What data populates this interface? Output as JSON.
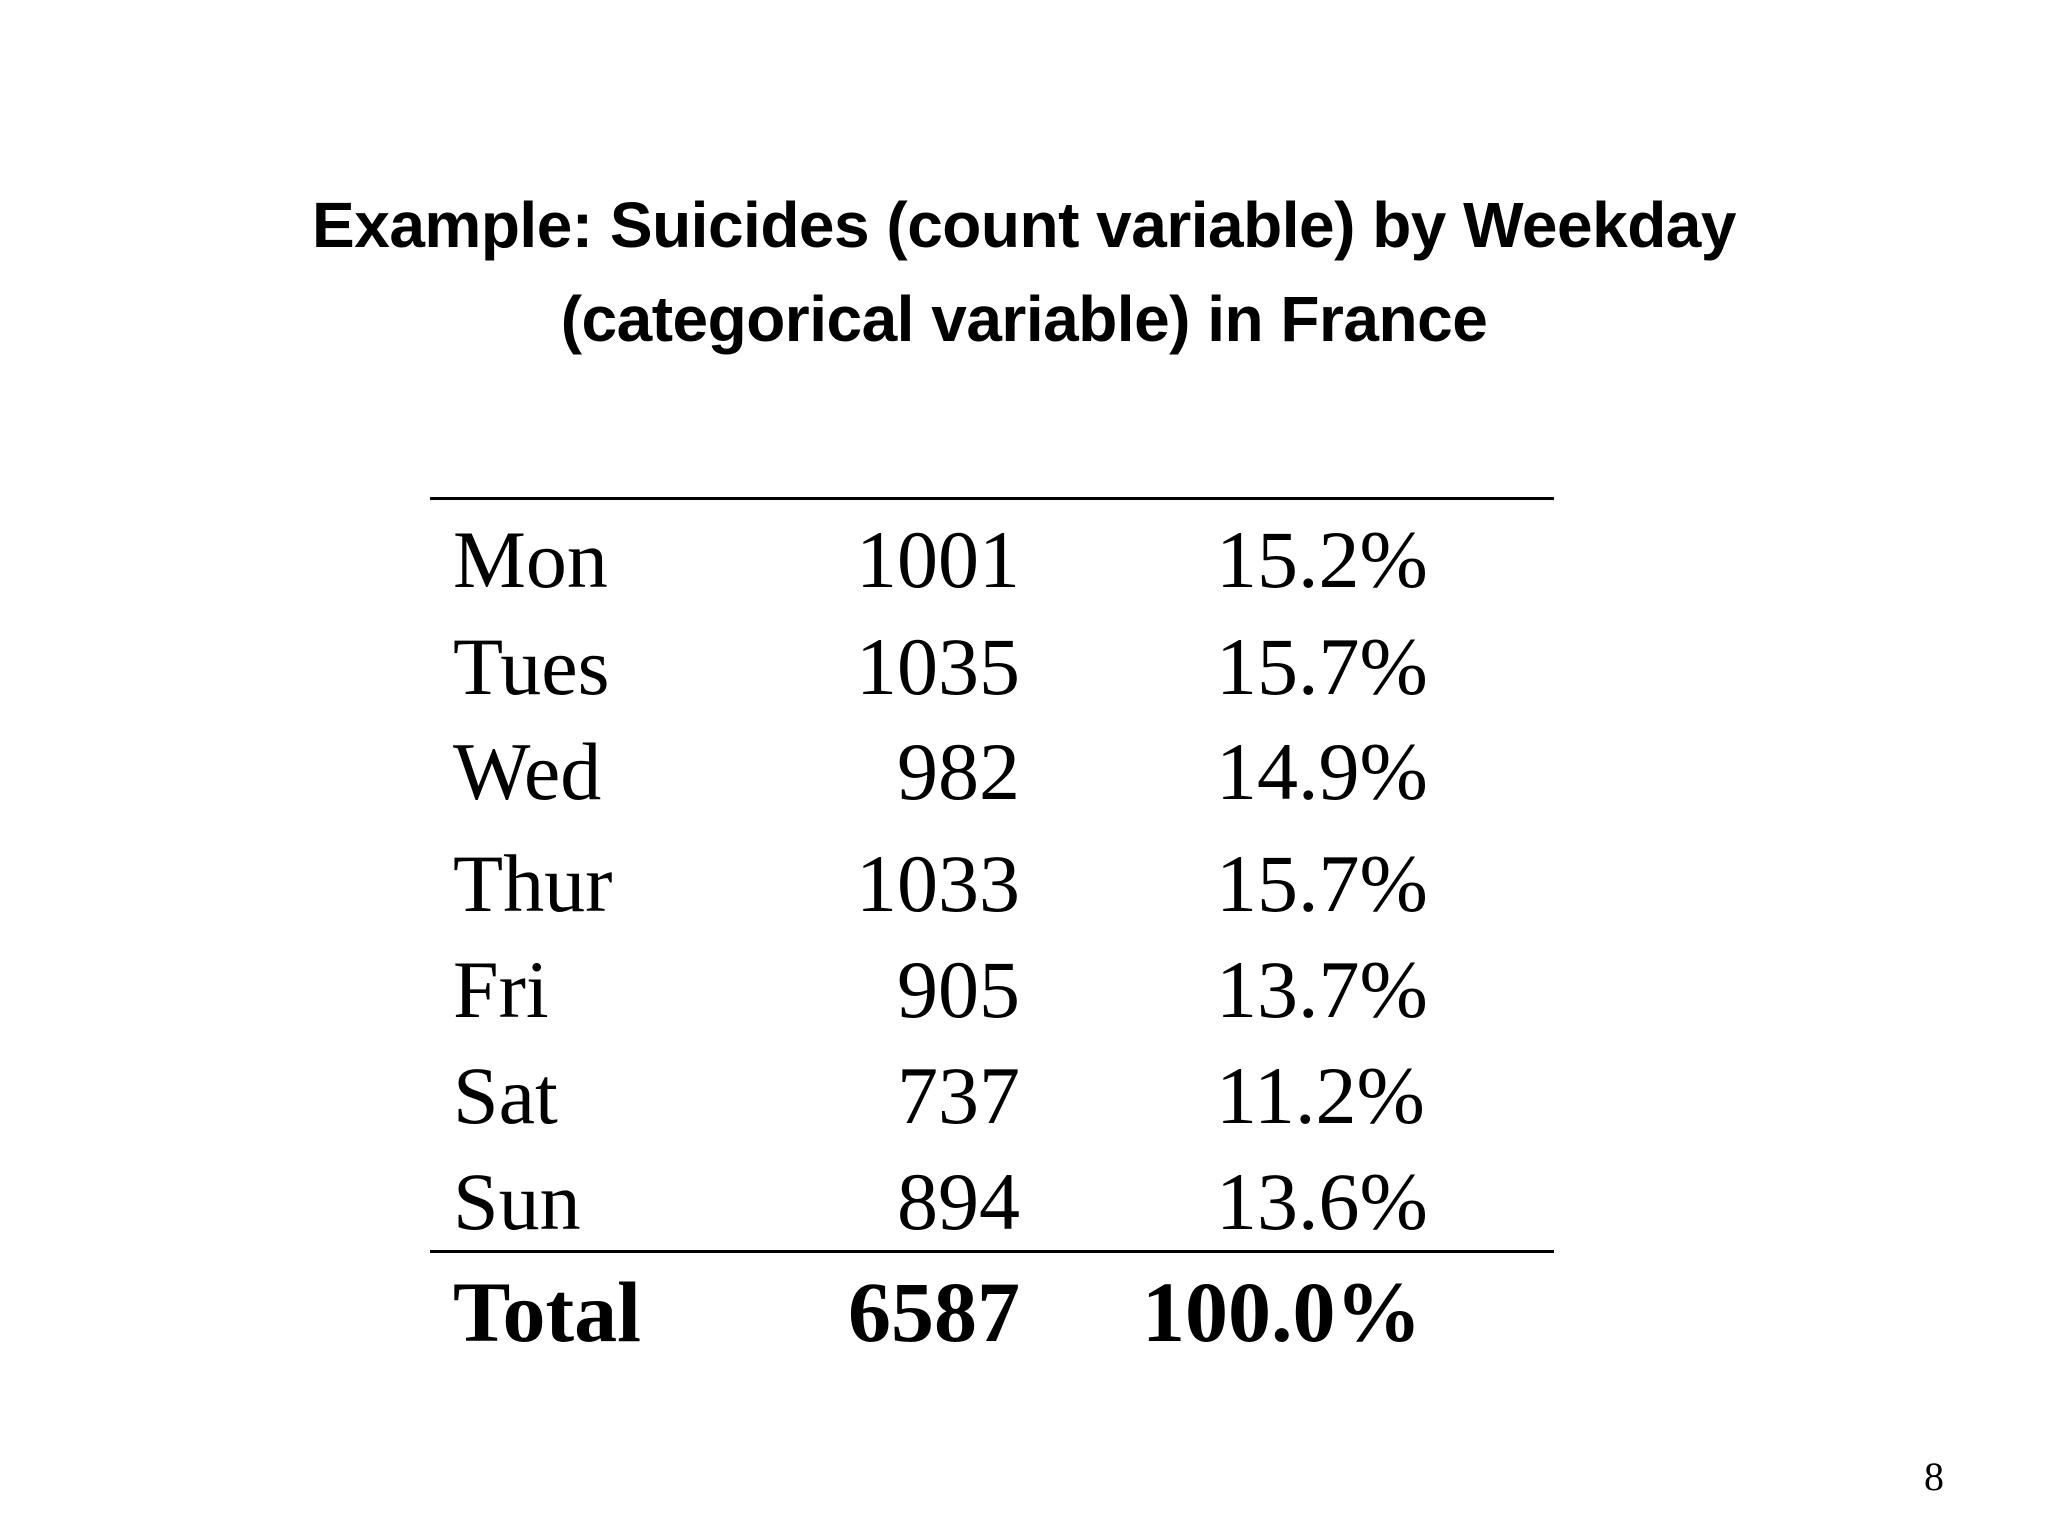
{
  "slide": {
    "title_line1": "Example: Suicides (count variable) by Weekday",
    "title_line2": "(categorical variable) in France",
    "page_number": "8"
  },
  "table": {
    "rows": [
      {
        "day": "Mon",
        "count": "1001",
        "percent": "15.2%"
      },
      {
        "day": "Tues",
        "count": "1035",
        "percent": "15.7%"
      },
      {
        "day": "Wed",
        "count": "982",
        "percent": "14.9%"
      },
      {
        "day": "Thur",
        "count": "1033",
        "percent": "15.7%"
      },
      {
        "day": "Fri",
        "count": "905",
        "percent": "13.7%"
      },
      {
        "day": "Sat",
        "count": "737",
        "percent": "11.2%"
      },
      {
        "day": "Sun",
        "count": "894",
        "percent": "13.6%"
      }
    ],
    "total": {
      "day": "Total",
      "count": "6587",
      "percent": "100.0%"
    }
  }
}
